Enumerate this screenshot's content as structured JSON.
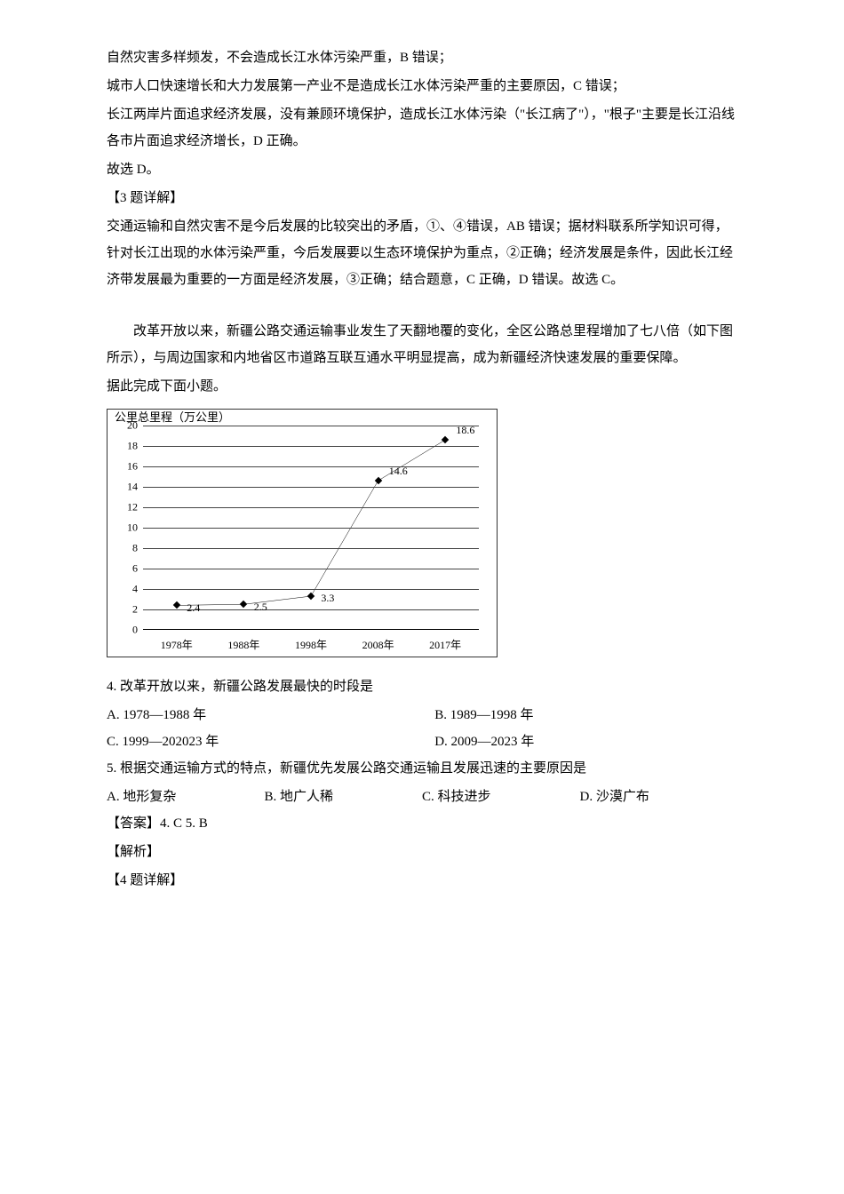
{
  "paragraphs": {
    "p1": "自然灾害多样频发，不会造成长江水体污染严重，B 错误；",
    "p2": "城市人口快速增长和大力发展第一产业不是造成长江水体污染严重的主要原因，C 错误；",
    "p3": "长江两岸片面追求经济发展，没有兼顾环境保护，造成长江水体污染（\"长江病了\"），\"根子\"主要是长江沿线各市片面追求经济增长，D 正确。",
    "p4": "故选 D。",
    "p5": "【3 题详解】",
    "p6": "交通运输和自然灾害不是今后发展的比较突出的矛盾，①、④错误，AB 错误；据材料联系所学知识可得，针对长江出现的水体污染严重，今后发展要以生态环境保护为重点，②正确；经济发展是条件，因此长江经济带发展最为重要的一方面是经济发展，③正确；结合题意，C 正确，D 错误。故选 C。",
    "p7": "改革开放以来，新疆公路交通运输事业发生了天翻地覆的变化，全区公路总里程增加了七八倍（如下图所示），与周边国家和内地省区市道路互联互通水平明显提高，成为新疆经济快速发展的重要保障。",
    "p8": "据此完成下面小题。"
  },
  "chart": {
    "type": "line",
    "axis_title": "公里总里程（万公里）",
    "ymin": 0,
    "ymax": 20,
    "ytick_step": 2,
    "yticks": [
      0,
      2,
      4,
      6,
      8,
      10,
      12,
      14,
      16,
      18,
      20
    ],
    "x_categories": [
      "1978年",
      "1988年",
      "1998年",
      "2008年",
      "2017年"
    ],
    "values": [
      2.4,
      2.5,
      3.3,
      14.6,
      18.6
    ],
    "point_labels": [
      "2.4",
      "2.5",
      "3.3",
      "14.6",
      "18.6"
    ],
    "line_color": "#000000",
    "point_style": "diamond",
    "background_color": "#ffffff",
    "grid_color": "#444444",
    "border_color": "#333333",
    "label_fontsize": 12
  },
  "questions": {
    "q4": {
      "stem": "4.  改革开放以来，新疆公路发展最快的时段是",
      "optA": "A.  1978—1988 年",
      "optB": "B.  1989—1998 年",
      "optC": "C.  1999—202023 年",
      "optD": "D.  2009—2023 年"
    },
    "q5": {
      "stem": "5.  根据交通运输方式的特点，新疆优先发展公路交通运输且发展迅速的主要原因是",
      "optA": "A.  地形复杂",
      "optB": "B.  地广人稀",
      "optC": "C.  科技进步",
      "optD": "D.  沙漠广布"
    }
  },
  "answers": "【答案】4. C    5. B",
  "analysis_label": "【解析】",
  "q4_detail": "【4 题详解】"
}
